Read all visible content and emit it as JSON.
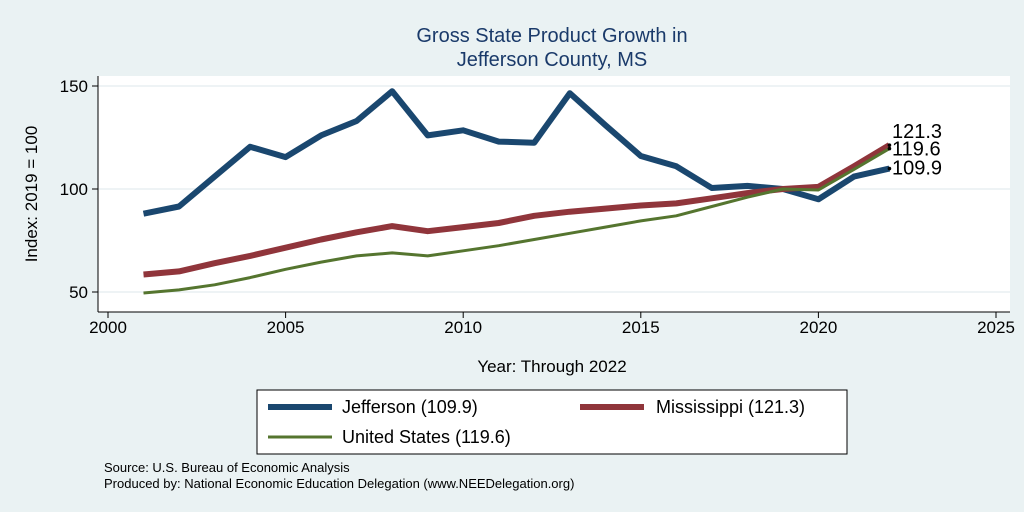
{
  "chart_data": {
    "type": "line",
    "title": [
      "Gross State Product Growth in",
      "Jefferson County, MS"
    ],
    "xlabel": "Year: Through 2022",
    "ylabel": "Index: 2019 = 100",
    "xlim": [
      2000,
      2025
    ],
    "ylim": [
      45,
      155
    ],
    "x_ticks": [
      2000,
      2005,
      2010,
      2015,
      2020,
      2025
    ],
    "y_ticks": [
      50,
      100,
      150
    ],
    "grid": "horizontal",
    "legend_position": "bottom",
    "x": [
      2001,
      2002,
      2003,
      2004,
      2005,
      2006,
      2007,
      2008,
      2009,
      2010,
      2011,
      2012,
      2013,
      2014,
      2015,
      2016,
      2017,
      2018,
      2019,
      2020,
      2021,
      2022
    ],
    "series": [
      {
        "name": "Jefferson  (109.9)",
        "color": "#1a476f",
        "values": [
          88,
          91.5,
          106,
          120.5,
          115.5,
          126,
          133,
          147.5,
          126,
          128.5,
          123,
          122.5,
          146.5,
          131,
          116,
          111,
          100.5,
          101.5,
          100,
          95,
          106,
          109.9
        ],
        "end_label": "109.9"
      },
      {
        "name": "Mississippi (121.3)",
        "color": "#90353b",
        "values": [
          58.5,
          60,
          64,
          67.5,
          71.5,
          75.5,
          79,
          82,
          79.5,
          81.5,
          83.5,
          87,
          89,
          90.5,
          92,
          93,
          95.5,
          98,
          100,
          101,
          111,
          121.3
        ],
        "end_label": "121.3"
      },
      {
        "name": "United States (119.6)",
        "color": "#55752f",
        "values": [
          49.5,
          51,
          53.5,
          57,
          61,
          64.5,
          67.5,
          69,
          67.5,
          70,
          72.5,
          75.5,
          78.5,
          81.5,
          84.5,
          87,
          91.5,
          96,
          100,
          99.5,
          109.5,
          119.6
        ],
        "end_label": "119.6"
      }
    ]
  },
  "source_line": "Source: U.S. Bureau of Economic Analysis",
  "produced_line": "Produced by: National Economic Education Delegation (www.NEEDelegation.org)"
}
